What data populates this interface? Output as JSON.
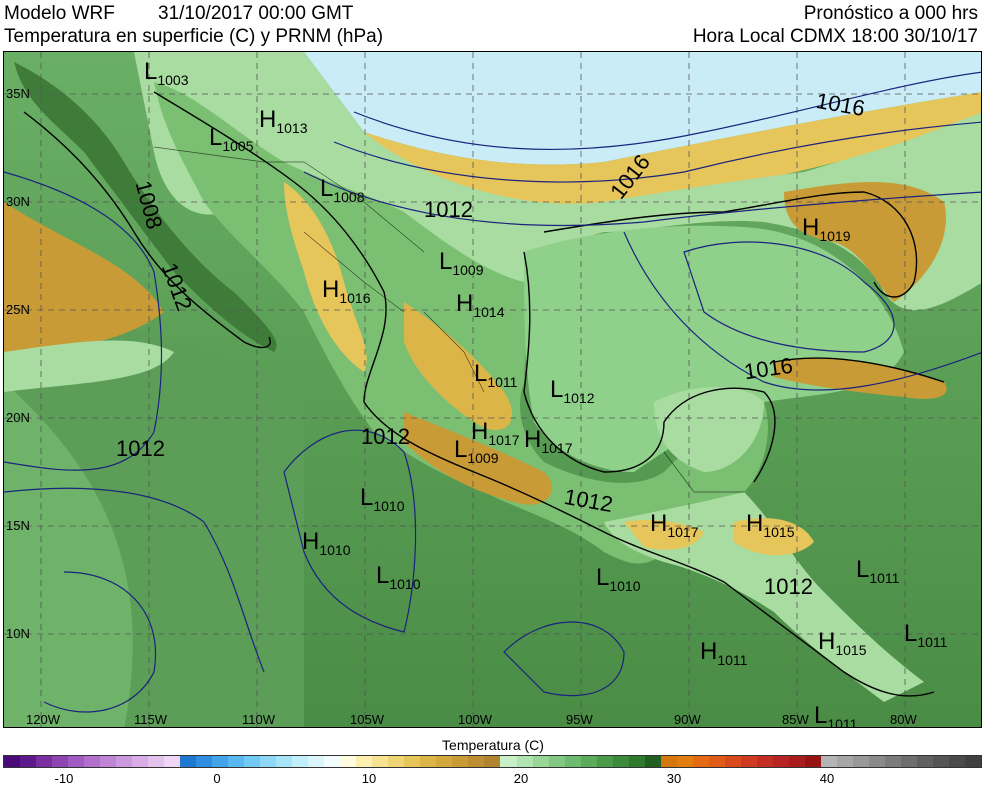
{
  "header": {
    "model": "Modelo WRF",
    "datetime": "31/10/2017 00:00 GMT",
    "variable": "Temperatura en superficie (C) y PRNM (hPa)",
    "forecast": "Pronóstico a 000 hrs",
    "local_time": "Hora Local CDMX 18:00 30/10/17"
  },
  "latitudes": [
    "35N",
    "30N",
    "25N",
    "20N",
    "15N",
    "10N"
  ],
  "longitudes": [
    "120W",
    "115W",
    "110W",
    "105W",
    "100W",
    "95W",
    "90W",
    "85W",
    "80W"
  ],
  "pressure_systems": [
    {
      "type": "L",
      "value": "1003"
    },
    {
      "type": "H",
      "value": "1013"
    },
    {
      "type": "L",
      "value": "1005"
    },
    {
      "type": "L",
      "value": "1008"
    },
    {
      "type": "L",
      "value": "1009"
    },
    {
      "type": "H",
      "value": "1016"
    },
    {
      "type": "H",
      "value": "1014"
    },
    {
      "type": "L",
      "value": "1011"
    },
    {
      "type": "L",
      "value": "1012"
    },
    {
      "type": "H",
      "value": "1017"
    },
    {
      "type": "H",
      "value": "1017"
    },
    {
      "type": "L",
      "value": "1009"
    },
    {
      "type": "L",
      "value": "1010"
    },
    {
      "type": "H",
      "value": "1010"
    },
    {
      "type": "L",
      "value": "1010"
    },
    {
      "type": "L",
      "value": "1010"
    },
    {
      "type": "H",
      "value": "1017"
    },
    {
      "type": "H",
      "value": "1015"
    },
    {
      "type": "L",
      "value": "1011"
    },
    {
      "type": "H",
      "value": "1011"
    },
    {
      "type": "H",
      "value": "1015"
    },
    {
      "type": "L",
      "value": "1011"
    },
    {
      "type": "L",
      "value": "1011"
    },
    {
      "type": "H",
      "value": "1019"
    }
  ],
  "isobar_labels": [
    "1016",
    "1016",
    "1012",
    "1008",
    "1012",
    "1012",
    "1012",
    "1016",
    "1012",
    "1012"
  ],
  "legend": {
    "title": "Temperatura (C)",
    "ticks": [
      "-10",
      "0",
      "10",
      "20",
      "30",
      "40"
    ],
    "colors": [
      "#4b0a7a",
      "#5e1a8c",
      "#7a2ea0",
      "#8e44b2",
      "#a05cc2",
      "#b070cc",
      "#c084d6",
      "#cc98de",
      "#d8ace6",
      "#e4c2ee",
      "#eed6f4",
      "#1e78d2",
      "#2f8ee0",
      "#44a4ea",
      "#5ab8f0",
      "#72caf4",
      "#8cd8f6",
      "#a6e4f8",
      "#c0eefa",
      "#daf6fc",
      "#f0fcfe",
      "#fffbe0",
      "#fcefb0",
      "#f6e290",
      "#efd474",
      "#e6c55a",
      "#dcb548",
      "#d2a73c",
      "#c99b36",
      "#be8e32",
      "#b08430",
      "#c8f0c8",
      "#b0e4b0",
      "#98d698",
      "#82c882",
      "#6eba6e",
      "#5aab5a",
      "#4a9a4a",
      "#3c8a3c",
      "#2e7a2e",
      "#225e22",
      "#d4780e",
      "#e07e10",
      "#e46a14",
      "#e05a18",
      "#d84a1c",
      "#cf3a20",
      "#c42e22",
      "#b82424",
      "#a81c1c",
      "#981414",
      "#b4b4b4",
      "#a6a6a6",
      "#989898",
      "#8a8a8a",
      "#7c7c7c",
      "#6e6e6e",
      "#606060",
      "#555555",
      "#4a4a4a",
      "#404040"
    ]
  },
  "colors": {
    "ocean": "#5fa15d",
    "ocean_deep": "#3f7c39",
    "land_green": "#7bbf72",
    "land_light": "#a8dca0",
    "land_warm": "#c99b36",
    "cold_north": "#c9ecf7",
    "isobar": "#1a237e"
  }
}
